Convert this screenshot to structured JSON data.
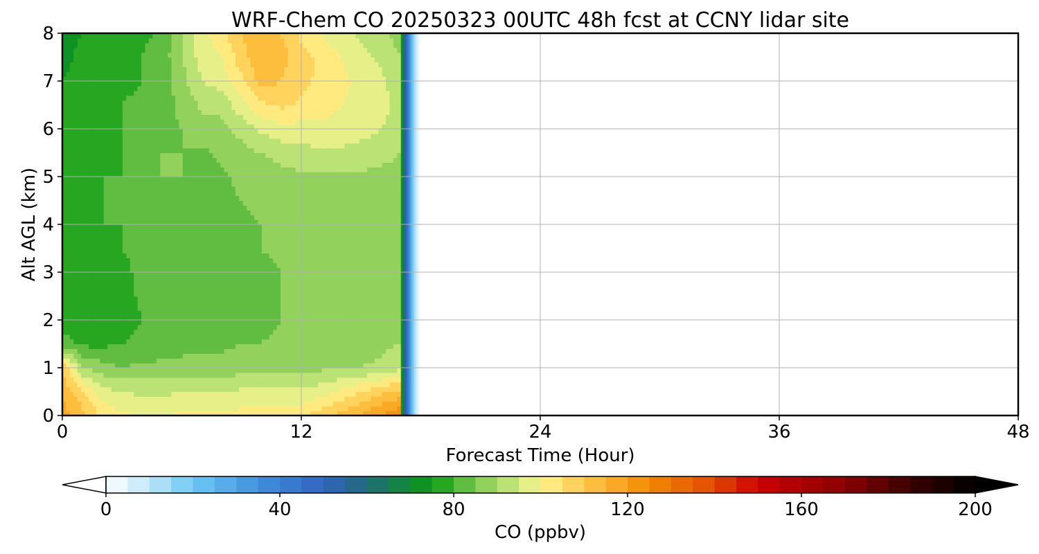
{
  "chart_data": {
    "type": "heatmap",
    "title": "WRF-Chem CO  20250323 00UTC 48h fcst at CCNY lidar site",
    "xlabel": "Forecast Time (Hour)",
    "ylabel": "Alt AGL (km)",
    "xlim": [
      0,
      48
    ],
    "ylim": [
      0,
      8
    ],
    "xticks": [
      0,
      12,
      24,
      36,
      48
    ],
    "yticks": [
      0,
      1,
      2,
      3,
      4,
      5,
      6,
      7,
      8
    ],
    "grid": true,
    "data_end_hour": 18,
    "x": [
      0,
      1,
      2,
      3,
      4,
      5,
      6,
      7,
      8,
      9,
      10,
      11,
      12,
      13,
      14,
      15,
      16,
      17
    ],
    "y": [
      0,
      0.5,
      1,
      1.5,
      2,
      2.5,
      3,
      3.5,
      4,
      4.5,
      5,
      5.5,
      6,
      6.5,
      7,
      7.5,
      8
    ],
    "z": [
      [
        118,
        112,
        104,
        101,
        100,
        100,
        101,
        101,
        101,
        102,
        103,
        102,
        104,
        108,
        112,
        116,
        120,
        124
      ],
      [
        114,
        106,
        97,
        95,
        94,
        94,
        95,
        95,
        95,
        96,
        96,
        96,
        96,
        98,
        101,
        105,
        109,
        112
      ],
      [
        110,
        90,
        87,
        85,
        86,
        86,
        87,
        87,
        87,
        88,
        88,
        88,
        89,
        89,
        90,
        90,
        91,
        94
      ],
      [
        82,
        79,
        79,
        80,
        82,
        83,
        83,
        84,
        84,
        85,
        85,
        86,
        87,
        87,
        88,
        88,
        89,
        90
      ],
      [
        77,
        79,
        76,
        76,
        80,
        81,
        81,
        82,
        83,
        83,
        84,
        85,
        86,
        86,
        87,
        87,
        88,
        89
      ],
      [
        77,
        79,
        77,
        78,
        81,
        82,
        82,
        83,
        83,
        84,
        84,
        85,
        86,
        86,
        87,
        87,
        88,
        89
      ],
      [
        77,
        80,
        78,
        79,
        81,
        82,
        83,
        83,
        83,
        84,
        84,
        85,
        86,
        87,
        87,
        88,
        88,
        89
      ],
      [
        77,
        79,
        79,
        80,
        81,
        82,
        83,
        83,
        83,
        84,
        85,
        86,
        86,
        87,
        87,
        88,
        88,
        89
      ],
      [
        77,
        78,
        80,
        80,
        81,
        82,
        83,
        83,
        84,
        84,
        85,
        86,
        86,
        87,
        88,
        88,
        88,
        89
      ],
      [
        77,
        78,
        80,
        80,
        82,
        83,
        84,
        82,
        84,
        85,
        86,
        86,
        87,
        87,
        88,
        88,
        88,
        89
      ],
      [
        77,
        78,
        80,
        80,
        82,
        85,
        85,
        82,
        84,
        86,
        87,
        88,
        89,
        89,
        89,
        89,
        89,
        89
      ],
      [
        76,
        77,
        79,
        80,
        82,
        85,
        85,
        84,
        86,
        88,
        90,
        92,
        93,
        94,
        94,
        93,
        91,
        90
      ],
      [
        76,
        77,
        78,
        80,
        82,
        84,
        85,
        88,
        88,
        92,
        96,
        98,
        98,
        99,
        98,
        97,
        95,
        92
      ],
      [
        76,
        77,
        78,
        80,
        81,
        83,
        86,
        91,
        92,
        98,
        104,
        106,
        104,
        102,
        100,
        99,
        97,
        93
      ],
      [
        75,
        76,
        78,
        79,
        80,
        82,
        88,
        95,
        97,
        104,
        112,
        110,
        106,
        104,
        101,
        99,
        96,
        92
      ],
      [
        74,
        76,
        77,
        78,
        80,
        82,
        90,
        97,
        100,
        108,
        114,
        112,
        107,
        104,
        100,
        97,
        94,
        90
      ],
      [
        73,
        75,
        76,
        77,
        79,
        81,
        90,
        98,
        103,
        110,
        114,
        110,
        104,
        100,
        96,
        94,
        91,
        88
      ]
    ],
    "colorbar": {
      "label": "CO  (ppbv)",
      "min": 0,
      "max": 200,
      "step": 5,
      "ticks": [
        0,
        40,
        80,
        120,
        160,
        200
      ],
      "extend": "both",
      "stops": [
        {
          "v": 0,
          "c": "#ffffff"
        },
        {
          "v": 10,
          "c": "#bfe6f8"
        },
        {
          "v": 20,
          "c": "#6ec8f5"
        },
        {
          "v": 35,
          "c": "#3f8fdc"
        },
        {
          "v": 50,
          "c": "#3164c0"
        },
        {
          "v": 60,
          "c": "#1f6b78"
        },
        {
          "v": 75,
          "c": "#0a9a13"
        },
        {
          "v": 85,
          "c": "#7ec850"
        },
        {
          "v": 95,
          "c": "#cfea80"
        },
        {
          "v": 100,
          "c": "#fff590"
        },
        {
          "v": 110,
          "c": "#ffc84a"
        },
        {
          "v": 125,
          "c": "#f28a00"
        },
        {
          "v": 140,
          "c": "#e04a00"
        },
        {
          "v": 150,
          "c": "#cc0000"
        },
        {
          "v": 170,
          "c": "#8a0000"
        },
        {
          "v": 185,
          "c": "#3a0000"
        },
        {
          "v": 200,
          "c": "#000000"
        }
      ]
    }
  }
}
